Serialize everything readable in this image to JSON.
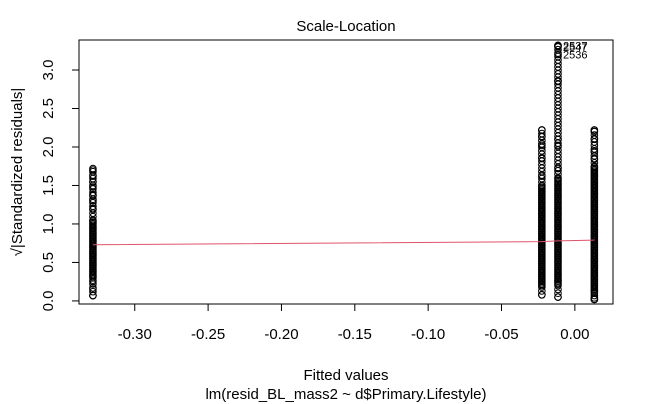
{
  "chart_data": {
    "type": "scatter",
    "title": "Scale-Location",
    "xlabel": "Fitted values",
    "ylabel": "√|Standardized residuals|",
    "subtitle": "lm(resid_BL_mass2 ~ d$Primary.Lifestyle)",
    "xlim": [
      -0.338,
      0.026
    ],
    "ylim": [
      -0.04,
      3.39
    ],
    "x_ticks": [
      -0.3,
      -0.25,
      -0.2,
      -0.15,
      -0.1,
      -0.05,
      0.0
    ],
    "x_tick_labels": [
      "-0.30",
      "-0.25",
      "-0.20",
      "-0.15",
      "-0.10",
      "-0.05",
      "0.00"
    ],
    "y_ticks": [
      0.0,
      0.5,
      1.0,
      1.5,
      2.0,
      2.5,
      3.0
    ],
    "y_tick_labels": [
      "0.0",
      "0.5",
      "1.0",
      "1.5",
      "2.0",
      "2.5",
      "3.0"
    ],
    "marker": "open-circle",
    "marker_color": "#000000",
    "groups": [
      {
        "x": -0.3285,
        "y_min": 0.07,
        "y_max": 1.72,
        "dense_range": [
          0.3,
          1.05
        ],
        "outliers": [
          0.07,
          0.15,
          0.25,
          1.2,
          1.3,
          1.38,
          1.48,
          1.55,
          1.62,
          1.7
        ]
      },
      {
        "x": -0.0225,
        "y_min": 0.08,
        "y_max": 2.22,
        "dense_range": [
          0.2,
          1.5
        ],
        "outliers": [
          0.08,
          1.62,
          1.85,
          2.02,
          2.14,
          2.22
        ]
      },
      {
        "x": -0.0115,
        "y_min": 0.05,
        "y_max": 3.32,
        "dense_range": [
          0.2,
          1.6
        ],
        "outliers": [
          1.72,
          2.02,
          2.1,
          2.85,
          2.86,
          3.2,
          3.3,
          3.32
        ]
      },
      {
        "x": 0.0133,
        "y_min": 0.02,
        "y_max": 2.22,
        "dense_range": [
          0.1,
          1.75
        ],
        "outliers": [
          0.02,
          0.04,
          1.85,
          1.95,
          2.1,
          2.2,
          2.22
        ]
      }
    ],
    "smooth_line": {
      "color": "#DF536B",
      "x": [
        -0.3285,
        -0.0225,
        -0.0115,
        0.0133
      ],
      "y": [
        0.73,
        0.77,
        0.78,
        0.79
      ]
    },
    "point_labels": [
      {
        "text": "2537",
        "x": -0.0115,
        "y": 3.32
      },
      {
        "text": "2547",
        "x": -0.0115,
        "y": 3.3
      },
      {
        "text": "2536",
        "x": -0.0115,
        "y": 3.2
      }
    ],
    "grid": false,
    "legend": "none"
  }
}
